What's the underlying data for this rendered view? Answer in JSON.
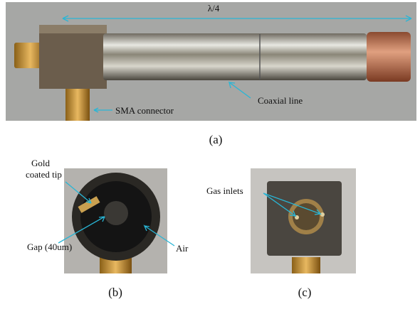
{
  "panels": [
    {
      "caption": "(a)",
      "annotations": [
        "λ/4",
        "Coaxial line",
        "SMA connector"
      ]
    },
    {
      "caption": "(b)",
      "annotations": [
        "Gold",
        "coated tip",
        "Gap (40um)",
        "Air"
      ]
    },
    {
      "caption": "(c)",
      "annotations": [
        "Gas inlets"
      ]
    }
  ]
}
